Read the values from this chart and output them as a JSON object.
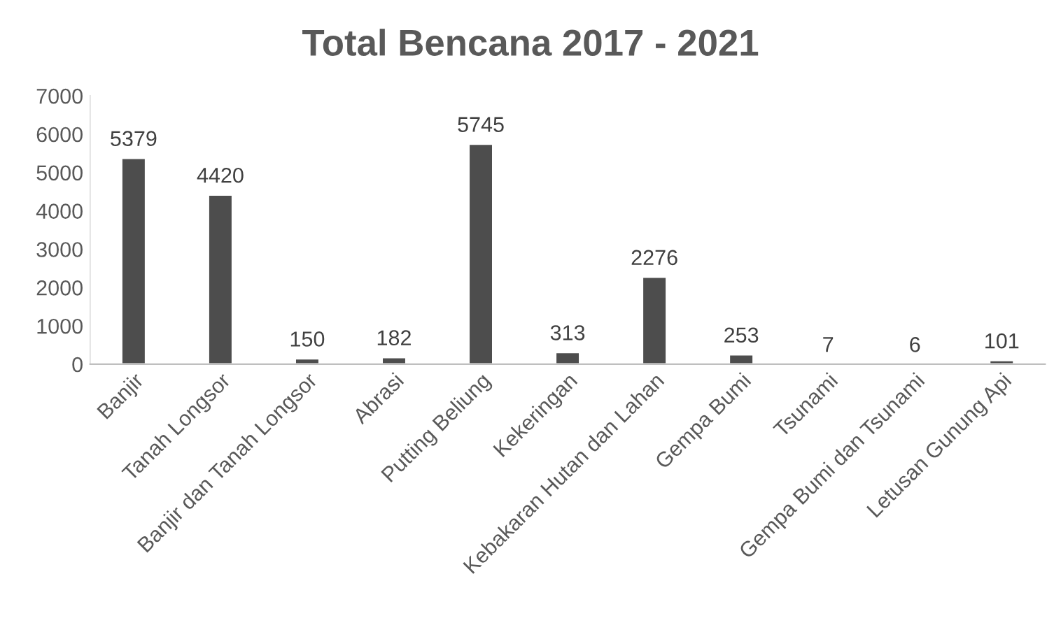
{
  "chart_data": {
    "type": "bar",
    "title": "Total Bencana 2017 - 2021",
    "categories": [
      "Banjir",
      "Tanah Longsor",
      "Banjir dan Tanah Longsor",
      "Abrasi",
      "Putting Beliung",
      "Kekeringan",
      "Kebakaran Hutan dan Lahan",
      "Gempa Bumi",
      "Tsunami",
      "Gempa Bumi dan Tsunami",
      "Letusan Gunung Api"
    ],
    "values": [
      5379,
      4420,
      150,
      182,
      5745,
      313,
      2276,
      253,
      7,
      6,
      101
    ],
    "color": "#4d4d4d",
    "ylim": [
      0,
      7000
    ],
    "yticks": [
      0,
      1000,
      2000,
      3000,
      4000,
      5000,
      6000,
      7000
    ],
    "data_labels": true,
    "grid": false,
    "legend": false
  }
}
